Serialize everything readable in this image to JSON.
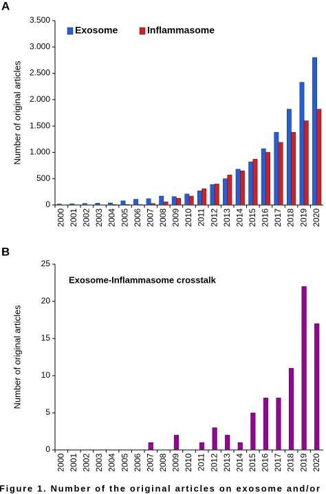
{
  "chart_data": [
    {
      "type": "bar",
      "panel": "A",
      "ylabel": "Number of original articles",
      "categories": [
        "2000",
        "2001",
        "2002",
        "2003",
        "2004",
        "2005",
        "2006",
        "2007",
        "2008",
        "2009",
        "2010",
        "2011",
        "2012",
        "2013",
        "2014",
        "2015",
        "2016",
        "2017",
        "2018",
        "2019",
        "2020"
      ],
      "series": [
        {
          "name": "Exosome",
          "color": "#1f5fe0",
          "values": [
            20,
            25,
            30,
            35,
            40,
            80,
            110,
            120,
            170,
            160,
            210,
            270,
            390,
            500,
            680,
            820,
            1070,
            1380,
            1820,
            2330,
            2800
          ]
        },
        {
          "name": "Inflammasome",
          "color": "#d81e1e",
          "values": [
            0,
            5,
            5,
            5,
            10,
            10,
            10,
            30,
            60,
            130,
            170,
            310,
            400,
            570,
            650,
            870,
            1000,
            1190,
            1380,
            1600,
            1820
          ]
        }
      ],
      "ylim": [
        0,
        3500
      ],
      "yticks": [
        0,
        500,
        {
          "value": 1000,
          "label": "1.000"
        },
        {
          "value": 1500,
          "label": "1.500"
        },
        {
          "value": 2000,
          "label": "2.000"
        },
        {
          "value": 2500,
          "label": "2.500"
        },
        {
          "value": 3000,
          "label": "3.000"
        },
        {
          "value": 3500,
          "label": "3.500"
        }
      ],
      "legend": "top-left"
    },
    {
      "type": "bar",
      "panel": "B",
      "title": "Exosome-Inflammasome crosstalk",
      "ylabel": "Number of original articles",
      "categories": [
        "2000",
        "2001",
        "2002",
        "2003",
        "2004",
        "2005",
        "2006",
        "2007",
        "2008",
        "2009",
        "2010",
        "2011",
        "2012",
        "2013",
        "2014",
        "2015",
        "2016",
        "2017",
        "2018",
        "2019",
        "2020"
      ],
      "values": [
        0,
        0,
        0,
        0,
        0,
        0,
        0,
        1,
        0,
        2,
        0,
        1,
        3,
        2,
        1,
        5,
        7,
        7,
        11,
        22,
        17
      ],
      "color": "#990099",
      "ylim": [
        0,
        25
      ],
      "yticks": [
        0,
        5,
        10,
        15,
        20,
        25
      ]
    }
  ],
  "caption": "Figure 1. Number of the original articles on exosome and/or"
}
